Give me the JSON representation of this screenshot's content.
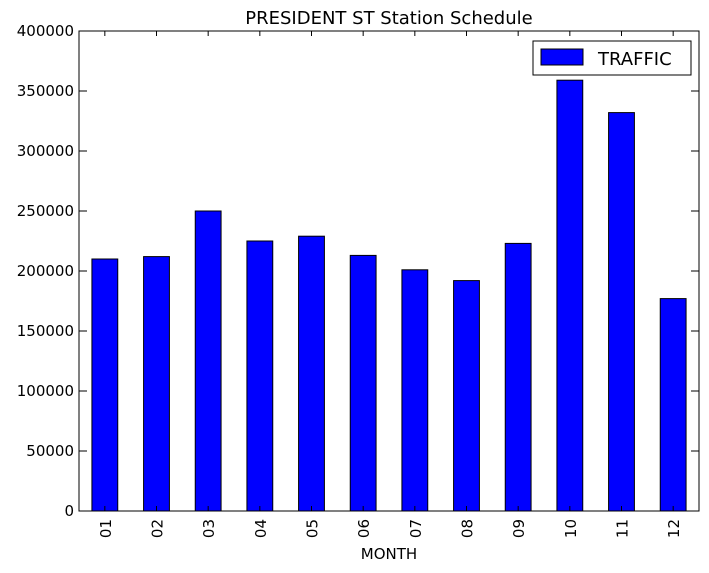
{
  "chart_data": {
    "type": "bar",
    "title": "PRESIDENT ST Station Schedule",
    "xlabel": "MONTH",
    "ylabel": "",
    "categories": [
      "01",
      "02",
      "03",
      "04",
      "05",
      "06",
      "07",
      "08",
      "09",
      "10",
      "11",
      "12"
    ],
    "series": [
      {
        "name": "TRAFFIC",
        "values": [
          210000,
          212000,
          250000,
          225000,
          229000,
          213000,
          201000,
          192000,
          223000,
          359000,
          332000,
          177000
        ]
      }
    ],
    "ylim": [
      0,
      400000
    ],
    "yticks": [
      0,
      50000,
      100000,
      150000,
      200000,
      250000,
      300000,
      350000,
      400000
    ],
    "ytick_labels": [
      "0",
      "50000",
      "100000",
      "150000",
      "200000",
      "250000",
      "300000",
      "350000",
      "400000"
    ],
    "grid": false,
    "legend_position": "top-right",
    "colors": {
      "bar": "#0000ff",
      "bar_edge": "#000000",
      "axis": "#000000",
      "background": "#ffffff"
    }
  }
}
